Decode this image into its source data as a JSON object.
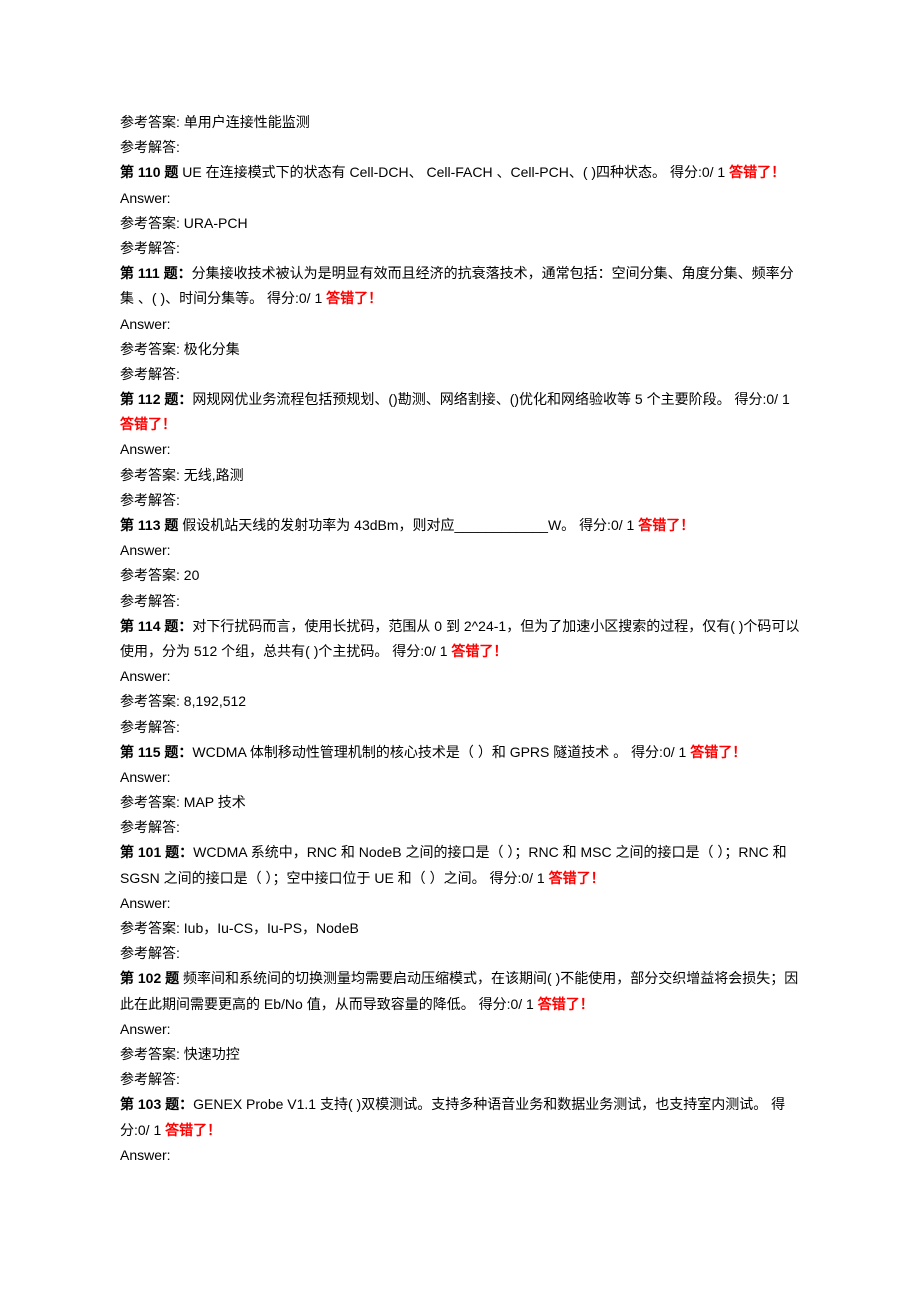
{
  "labels": {
    "ref_answer": "参考答案:",
    "ref_explain": "参考解答:",
    "answer": "Answer:",
    "wrong": "答错了！",
    "score_prefix": "得分:",
    "score_value": "0/ 1"
  },
  "top": {
    "ref_answer_val": "单用户连接性能监测"
  },
  "questions": [
    {
      "num": "110",
      "num_style": "plain",
      "text_before": "UE 在连接模式下的状态有 Cell-DCH、 Cell-FACH 、Cell-PCH、( )四种状态。",
      "ref_answer_val": "URA-PCH"
    },
    {
      "num": "111",
      "num_style": "colon",
      "text_before": "分集接收技术被认为是明显有效而且经济的抗衰落技术，通常包括：空间分集、角度分集、频率分集 、( )、时间分集等。",
      "ref_answer_val": "极化分集"
    },
    {
      "num": "112",
      "num_style": "colon",
      "text_before": "网规网优业务流程包括预规划、()勘测、网络割接、()优化和网络验收等 5 个主要阶段。",
      "ref_answer_val": "无线,路测"
    },
    {
      "num": "113",
      "num_style": "plain",
      "text_before": "假设机站天线的发射功率为 43dBm，则对应____________W。",
      "ref_answer_val": "20"
    },
    {
      "num": "114",
      "num_style": "colon",
      "text_before": "对下行扰码而言，使用长扰码，范围从 0 到 2^24-1，但为了加速小区搜索的过程，仅有( )个码可以使用，分为 512 个组，总共有( )个主扰码。",
      "ref_answer_val": "8,192,512"
    },
    {
      "num": "115",
      "num_style": "colon",
      "text_before": "WCDMA 体制移动性管理机制的核心技术是（ ）和 GPRS 隧道技术 。",
      "ref_answer_val": "MAP 技术"
    },
    {
      "num": "101",
      "num_style": "colon",
      "text_before": "WCDMA 系统中，RNC 和 NodeB 之间的接口是（ ）；RNC 和 MSC 之间的接口是（ ）；RNC 和 SGSN 之间的接口是（ ）；空中接口位于 UE 和（ ）之间。",
      "ref_answer_val": "Iub，Iu-CS，Iu-PS，NodeB"
    },
    {
      "num": "102",
      "num_style": "plain",
      "text_before": "频率间和系统间的切换测量均需要启动压缩模式，在该期间( )不能使用，部分交织增益将会损失；因此在此期间需要更高的 Eb/No 值，从而导致容量的降低。",
      "ref_answer_val": "快速功控"
    },
    {
      "num": "103",
      "num_style": "colon",
      "text_before": "GENEX Probe V1.1 支持( )双模测试。支持多种语音业务和数据业务测试，也支持室内测试。",
      "ref_answer_val": null
    }
  ]
}
